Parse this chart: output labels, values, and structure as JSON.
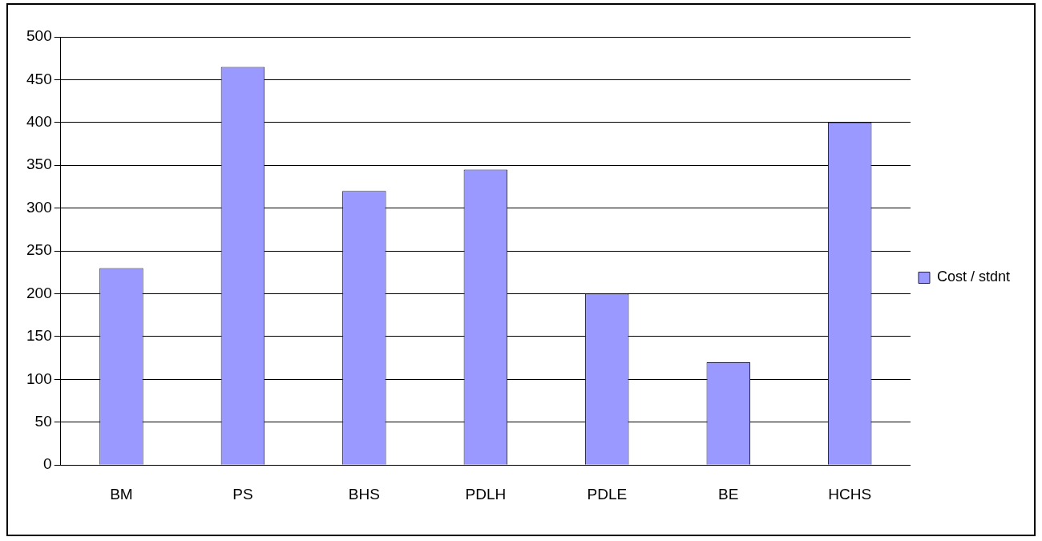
{
  "chart_data": {
    "type": "bar",
    "categories": [
      "BM",
      "PS",
      "BHS",
      "PDLH",
      "PDLE",
      "BE",
      "HCHS"
    ],
    "series": [
      {
        "name": "Cost / stdnt",
        "color": "#9999ff",
        "values": [
          230,
          465,
          320,
          345,
          200,
          120,
          400
        ]
      }
    ],
    "ylim": [
      0,
      500
    ],
    "yticks": [
      0,
      50,
      100,
      150,
      200,
      250,
      300,
      350,
      400,
      450,
      500
    ],
    "grid": "y",
    "legend": "right"
  }
}
